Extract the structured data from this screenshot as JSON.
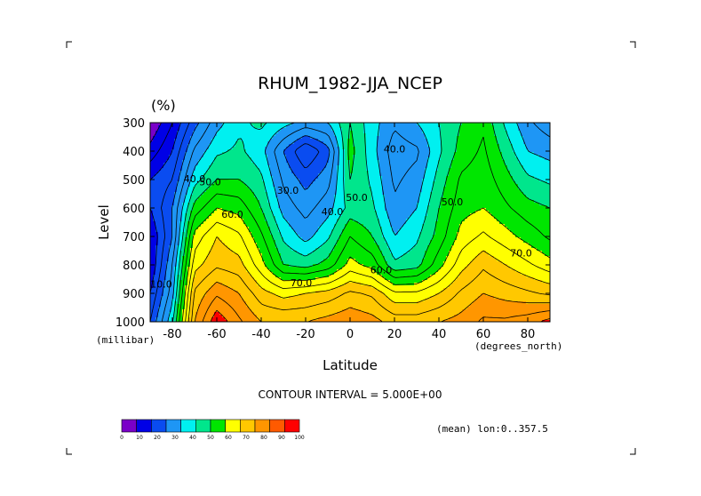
{
  "chart_data": {
    "type": "heatmap",
    "subtype": "filled-contour",
    "title": "RHUM_1982-JJA_NCEP",
    "units_label": "(%)",
    "xlabel": "Latitude",
    "ylabel": "Level",
    "x_units": "(degrees_north)",
    "y_units": "(millibar)",
    "xlim": [
      -90,
      90
    ],
    "ylim": [
      1000,
      300
    ],
    "x_ticks": [
      -80,
      -60,
      -40,
      -20,
      0,
      20,
      40,
      60,
      80
    ],
    "x_tick_labels": [
      "-80",
      "-60",
      "-40",
      "-20",
      "0",
      "20",
      "40",
      "60",
      "80"
    ],
    "y_ticks": [
      300,
      400,
      500,
      600,
      700,
      800,
      900,
      1000
    ],
    "y_tick_labels": [
      "300",
      "400",
      "500",
      "600",
      "700",
      "800",
      "900",
      "1000"
    ],
    "contour_interval_text": "CONTOUR INTERVAL = 5.000E+00",
    "mean_text": "(mean) lon:0..357.5",
    "latitudes": [
      -90,
      -80,
      -70,
      -60,
      -50,
      -40,
      -30,
      -20,
      -10,
      0,
      10,
      20,
      30,
      40,
      50,
      60,
      70,
      80,
      90
    ],
    "levels": [
      300,
      400,
      500,
      600,
      700,
      800,
      900,
      1000
    ],
    "values": [
      [
        5,
        15,
        28,
        38,
        44,
        46,
        42,
        38,
        40,
        50,
        42,
        36,
        40,
        45,
        50,
        54,
        44,
        36,
        32
      ],
      [
        12,
        20,
        36,
        44,
        46,
        42,
        30,
        20,
        28,
        52,
        42,
        32,
        34,
        44,
        52,
        56,
        48,
        40,
        38
      ],
      [
        20,
        25,
        43,
        50,
        50,
        46,
        34,
        28,
        33,
        50,
        44,
        34,
        37,
        47,
        56,
        58,
        52,
        46,
        44
      ],
      [
        20,
        30,
        52,
        60,
        58,
        50,
        38,
        33,
        38,
        47,
        46,
        36,
        40,
        50,
        58,
        60,
        56,
        52,
        50
      ],
      [
        15,
        30,
        62,
        70,
        66,
        56,
        44,
        38,
        44,
        55,
        50,
        40,
        44,
        52,
        62,
        66,
        62,
        58,
        54
      ],
      [
        15,
        35,
        68,
        74,
        72,
        62,
        50,
        48,
        52,
        62,
        58,
        46,
        48,
        58,
        68,
        74,
        70,
        66,
        62
      ],
      [
        20,
        38,
        76,
        84,
        80,
        72,
        68,
        70,
        72,
        76,
        74,
        66,
        66,
        70,
        76,
        80,
        78,
        76,
        74
      ],
      [
        25,
        44,
        80,
        94,
        86,
        80,
        80,
        80,
        82,
        84,
        82,
        78,
        78,
        80,
        82,
        86,
        86,
        88,
        92
      ]
    ],
    "contour_labels": [
      {
        "text": "70.0",
        "lat": -22,
        "lev": 875
      },
      {
        "text": "60.0",
        "lat": -53,
        "lev": 635
      },
      {
        "text": "50.0",
        "lat": -63,
        "lev": 520
      },
      {
        "text": "40.0",
        "lat": -70,
        "lev": 510
      },
      {
        "text": "30.0",
        "lat": -28,
        "lev": 550
      },
      {
        "text": "40.0",
        "lat": -8,
        "lev": 625
      },
      {
        "text": "50.0",
        "lat": 3,
        "lev": 575
      },
      {
        "text": "40.0",
        "lat": 20,
        "lev": 405
      },
      {
        "text": "50.0",
        "lat": 46,
        "lev": 590
      },
      {
        "text": "60.0",
        "lat": 14,
        "lev": 830
      },
      {
        "text": "70.0",
        "lat": 77,
        "lev": 770
      },
      {
        "text": "10.0",
        "lat": -85,
        "lev": 880
      }
    ],
    "colorbar": {
      "colors": [
        "#7a00c8",
        "#0000e6",
        "#0a4cf0",
        "#1e96f5",
        "#00f0f0",
        "#00e68c",
        "#00e600",
        "#ffff00",
        "#ffc800",
        "#ff9600",
        "#ff5a00",
        "#ff0000"
      ],
      "bounds": [
        0,
        10,
        20,
        30,
        40,
        50,
        60,
        70,
        80,
        90,
        100
      ],
      "labels": [
        "0",
        "10",
        "20",
        "30",
        "40",
        "50",
        "60",
        "70",
        "80",
        "90",
        "100"
      ]
    }
  }
}
